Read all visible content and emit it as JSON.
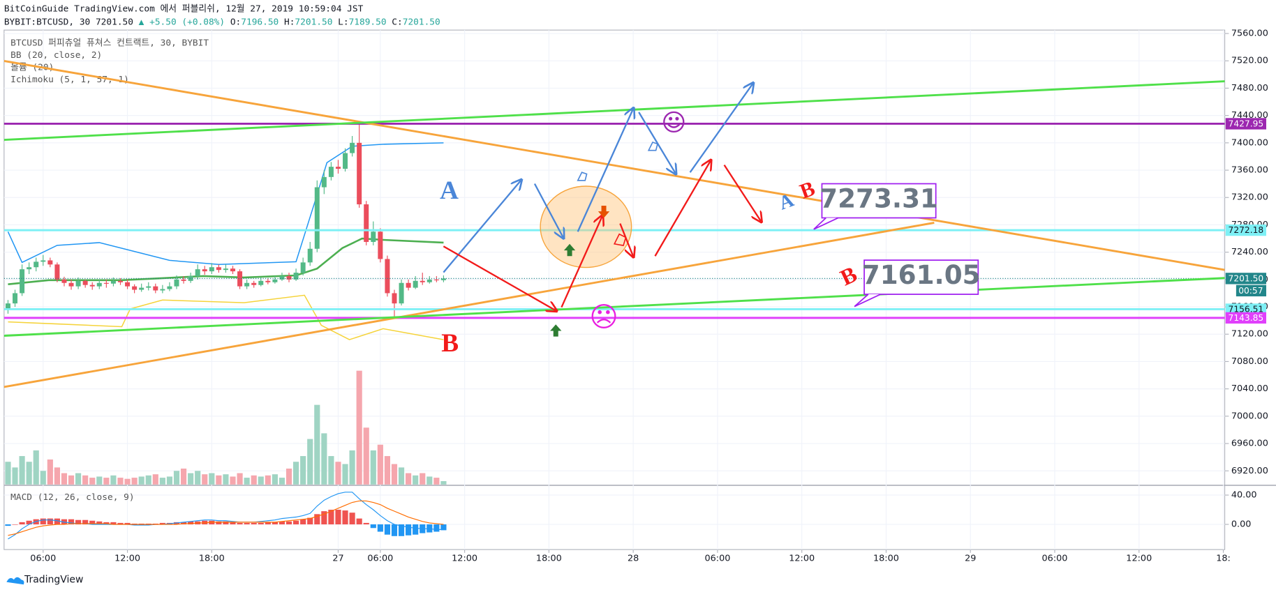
{
  "header": {
    "line1": "BitCoinGuide TradingView.com 에서 퍼블리쉬, 12월 27, 2019 10:59:04 JST",
    "symbol": "BYBIT:BTCUSD, 30",
    "last": "7201.50",
    "change": "+5.50 (+0.08%)",
    "ohlc": [
      {
        "key": "O:",
        "val": "7196.50"
      },
      {
        "key": "H:",
        "val": "7201.50"
      },
      {
        "key": "L:",
        "val": "7189.50"
      },
      {
        "key": "C:",
        "val": "7201.50"
      }
    ]
  },
  "legend": [
    "BTCUSD 퍼피츄얼 퓨쳐스 컨트랙트, 30, BYBIT",
    "BB (20, close, 2)",
    "볼륨 (20)",
    "Ichimoku (5, 1, 57, 1)"
  ],
  "footer": "TradingView",
  "annotations": {
    "a_big": "A",
    "b_big": "B",
    "a_small": "A",
    "b_small": "B",
    "b_mid": "B",
    "box1": "7273.31",
    "box2": "7161.05"
  },
  "chart_data": {
    "type": "candlestick",
    "colors": {
      "up": "#53b987",
      "down": "#eb4d5c",
      "volume_up": "#9fd4c3",
      "volume_down": "#f5a6ad"
    },
    "x": [
      3.5,
      4,
      4.5,
      5,
      5.5,
      6,
      6.5,
      7,
      7.5,
      8,
      8.5,
      9,
      9.5,
      10,
      10.5,
      11,
      11.5,
      12,
      12.5,
      13,
      13.5,
      14,
      14.5,
      15,
      15.5,
      16,
      16.5,
      17,
      17.5,
      18,
      18.5,
      19,
      19.5,
      20,
      20.5,
      21,
      21.5,
      22,
      22.5,
      23,
      23.5,
      24,
      24.5,
      25,
      25.5,
      26,
      26.5,
      27,
      27.5,
      28,
      28.5,
      29,
      29.5,
      30,
      30.5,
      31,
      31.5,
      32,
      32.5,
      33,
      33.5,
      34,
      34.5
    ],
    "open": [
      7158,
      7165,
      7180,
      7215,
      7218,
      7226,
      7228,
      7222,
      7200,
      7195,
      7190,
      7198,
      7192,
      7190,
      7195,
      7194,
      7198,
      7196,
      7190,
      7185,
      7188,
      7190,
      7184,
      7186,
      7190,
      7200,
      7198,
      7205,
      7215,
      7212,
      7218,
      7214,
      7216,
      7212,
      7190,
      7195,
      7192,
      7198,
      7196,
      7200,
      7205,
      7200,
      7210,
      7225,
      7245,
      7335,
      7350,
      7365,
      7362,
      7385,
      7400,
      7310,
      7255,
      7270,
      7230,
      7180,
      7165,
      7195,
      7188,
      7198,
      7196,
      7200,
      7199
    ],
    "high": [
      7170,
      7185,
      7222,
      7225,
      7232,
      7236,
      7232,
      7225,
      7204,
      7200,
      7203,
      7200,
      7196,
      7200,
      7200,
      7203,
      7202,
      7200,
      7193,
      7194,
      7196,
      7194,
      7192,
      7196,
      7206,
      7205,
      7210,
      7222,
      7220,
      7224,
      7222,
      7222,
      7220,
      7215,
      7200,
      7198,
      7203,
      7202,
      7205,
      7210,
      7210,
      7216,
      7232,
      7255,
      7345,
      7360,
      7372,
      7375,
      7392,
      7410,
      7430,
      7315,
      7285,
      7275,
      7235,
      7185,
      7200,
      7200,
      7205,
      7210,
      7205,
      7205,
      7206
    ],
    "low": [
      7150,
      7160,
      7176,
      7208,
      7212,
      7220,
      7218,
      7196,
      7190,
      7185,
      7186,
      7188,
      7185,
      7186,
      7188,
      7190,
      7192,
      7186,
      7180,
      7182,
      7184,
      7180,
      7180,
      7183,
      7186,
      7194,
      7195,
      7200,
      7207,
      7208,
      7210,
      7210,
      7208,
      7186,
      7186,
      7188,
      7190,
      7193,
      7194,
      7198,
      7196,
      7198,
      7206,
      7220,
      7240,
      7325,
      7345,
      7355,
      7358,
      7380,
      7305,
      7250,
      7250,
      7225,
      7175,
      7145,
      7162,
      7184,
      7186,
      7192,
      7194,
      7196,
      7196
    ],
    "close": [
      7165,
      7180,
      7215,
      7218,
      7226,
      7228,
      7222,
      7200,
      7195,
      7190,
      7198,
      7192,
      7190,
      7195,
      7194,
      7198,
      7196,
      7190,
      7185,
      7188,
      7190,
      7184,
      7186,
      7190,
      7200,
      7198,
      7205,
      7215,
      7212,
      7218,
      7214,
      7216,
      7212,
      7190,
      7195,
      7192,
      7198,
      7196,
      7200,
      7205,
      7200,
      7210,
      7225,
      7245,
      7335,
      7350,
      7365,
      7362,
      7385,
      7400,
      7310,
      7255,
      7270,
      7230,
      7180,
      7165,
      7195,
      7188,
      7198,
      7196,
      7200,
      7199,
      7201.5
    ],
    "volume": [
      20,
      15,
      25,
      20,
      30,
      12,
      22,
      15,
      10,
      8,
      10,
      8,
      6,
      7,
      6,
      8,
      6,
      5,
      6,
      7,
      8,
      9,
      6,
      7,
      12,
      14,
      10,
      12,
      9,
      10,
      8,
      9,
      7,
      10,
      6,
      8,
      7,
      8,
      9,
      6,
      14,
      20,
      25,
      40,
      70,
      45,
      25,
      20,
      18,
      30,
      100,
      50,
      30,
      35,
      25,
      18,
      15,
      10,
      8,
      10,
      7,
      6,
      3
    ],
    "overlays": [
      {
        "color": "#2196f3",
        "width": 1.3,
        "x": [
          3.5,
          4.5,
          7,
          10,
          15,
          18.5,
          24,
          25.3,
          26.2,
          28,
          30.3,
          34.5
        ],
        "values": [
          7270,
          7225,
          7250,
          7254,
          7228,
          7222,
          7226,
          7311,
          7371,
          7395,
          7398,
          7400
        ]
      },
      {
        "color": "#4caf50",
        "width": 2.2,
        "x": [
          3.5,
          6.4,
          11.6,
          17.4,
          20.3,
          24,
          25.5,
          27.3,
          28.7,
          30.2,
          34.5
        ],
        "values": [
          7193,
          7199,
          7199,
          7205,
          7203,
          7206,
          7216,
          7246,
          7260,
          7258,
          7254
        ]
      },
      {
        "color": "#f5d33a",
        "width": 1.3,
        "x": [
          3.5,
          7,
          11.6,
          12.2,
          14.5,
          20.3,
          24.6,
          25.8,
          27.8,
          30.2,
          34.5
        ],
        "values": [
          7138,
          7135,
          7131,
          7157,
          7170,
          7166,
          7177,
          7133,
          7112,
          7128,
          7112
        ]
      }
    ],
    "xlim": [
      3.22,
      90.1
    ],
    "xticks": [
      {
        "value": 6,
        "label": "06:00"
      },
      {
        "value": 12,
        "label": "12:00"
      },
      {
        "value": 18,
        "label": "18:00"
      },
      27,
      {
        "value": 30,
        "label": "06:00"
      },
      {
        "value": 36,
        "label": "12:00"
      },
      {
        "value": 42,
        "label": "18:00"
      },
      {
        "value": 48,
        "label": "28"
      },
      {
        "value": 54,
        "label": "06:00"
      },
      {
        "value": 60,
        "label": "12:00"
      },
      {
        "value": 66,
        "label": "18:00"
      },
      {
        "value": 72,
        "label": "29"
      },
      {
        "value": 78,
        "label": "06:00"
      },
      {
        "value": 84,
        "label": "12:00"
      },
      {
        "value": 90,
        "label": "18:"
      }
    ],
    "ylim": [
      6900,
      7565
    ],
    "yticks": [
      {
        "value": 7560,
        "label": "7560.00"
      },
      {
        "value": 7520,
        "label": "7520.00"
      },
      {
        "value": 7480,
        "label": "7480.00"
      },
      {
        "value": 7440,
        "label": "7440.00"
      },
      {
        "value": 7400,
        "label": "7400.00"
      },
      {
        "value": 7360,
        "label": "7360.00"
      },
      {
        "value": 7320,
        "label": "7320.00"
      },
      {
        "value": 7280,
        "label": "7280.00"
      },
      {
        "value": 7240,
        "label": "7240.00"
      },
      {
        "value": 7200,
        "label": "7200.00"
      },
      {
        "value": 7160,
        "label": "7160.00"
      },
      {
        "value": 7120,
        "label": "7120.00"
      },
      {
        "value": 7080,
        "label": "7080.00"
      },
      {
        "value": 7040,
        "label": "7040.00"
      },
      {
        "value": 7000,
        "label": "7000.00"
      },
      {
        "value": 6960,
        "label": "6960.00"
      },
      {
        "value": 6920,
        "label": "6920.00"
      }
    ],
    "grid": true,
    "price_lines": [
      {
        "value": 7427.95,
        "color": "#9c27b0",
        "text_color": "#ffffff"
      },
      {
        "value": 7272.18,
        "color": "#7ef0f5",
        "text_color": "#131722"
      },
      {
        "value": 7201.5,
        "label": "7201.50",
        "color": "#22868a",
        "text_color": "#ffffff",
        "dotted": true
      },
      {
        "value": 7156.51,
        "color": "#7ef0f5",
        "text_color": "#131722"
      },
      {
        "value": 7143.85,
        "color": "#e040fb",
        "text_color": "#ffffff"
      }
    ],
    "countdown": "00:57",
    "macd": {
      "title": "MACD (12, 26, close, 9)",
      "ylim": [
        -34.4,
        52.2
      ],
      "yticks": [
        {
          "value": 40,
          "label": "40.00"
        },
        {
          "value": 0,
          "label": "0.00"
        }
      ],
      "histogram_colors": {
        "positive": "#ef5350",
        "negative": "#2196f3"
      },
      "macd_color": "#2196f3",
      "signal_color": "#ff6d00",
      "histogram": [
        -2,
        0,
        3,
        5,
        7,
        8,
        8,
        8,
        7,
        7,
        6,
        6,
        5,
        4,
        3,
        3,
        2,
        2,
        1,
        1,
        1,
        1,
        2,
        2,
        3,
        3,
        4,
        4,
        5,
        5,
        4,
        4,
        3,
        2,
        2,
        2,
        2,
        3,
        3,
        4,
        4,
        5,
        7,
        9,
        14,
        18,
        20,
        20,
        19,
        16,
        8,
        2,
        -5,
        -10,
        -14,
        -16,
        -16,
        -15,
        -14,
        -12,
        -11,
        -10,
        -8
      ],
      "macd": [
        -20,
        -14,
        -6,
        0,
        4,
        6,
        6,
        5,
        3,
        2,
        1,
        1,
        0,
        0,
        0,
        0,
        0,
        0,
        -1,
        -1,
        -1,
        0,
        0,
        1,
        2,
        3,
        4,
        5,
        6,
        6,
        5,
        5,
        4,
        3,
        3,
        3,
        4,
        5,
        6,
        8,
        9,
        10,
        12,
        15,
        25,
        33,
        38,
        42,
        44,
        44,
        35,
        27,
        20,
        12,
        5,
        0,
        -2,
        -4,
        -5,
        -6,
        -6,
        -7,
        -7
      ],
      "signal": [
        -15,
        -13,
        -10,
        -7,
        -4,
        -2,
        -1,
        0,
        0,
        1,
        1,
        1,
        1,
        1,
        1,
        0,
        0,
        0,
        0,
        0,
        0,
        0,
        0,
        0,
        0,
        1,
        1,
        2,
        2,
        3,
        3,
        3,
        3,
        3,
        3,
        3,
        3,
        3,
        3,
        4,
        5,
        6,
        7,
        8,
        11,
        14,
        18,
        22,
        26,
        30,
        32,
        32,
        30,
        27,
        22,
        18,
        14,
        10,
        7,
        4,
        2,
        1,
        0
      ]
    }
  }
}
